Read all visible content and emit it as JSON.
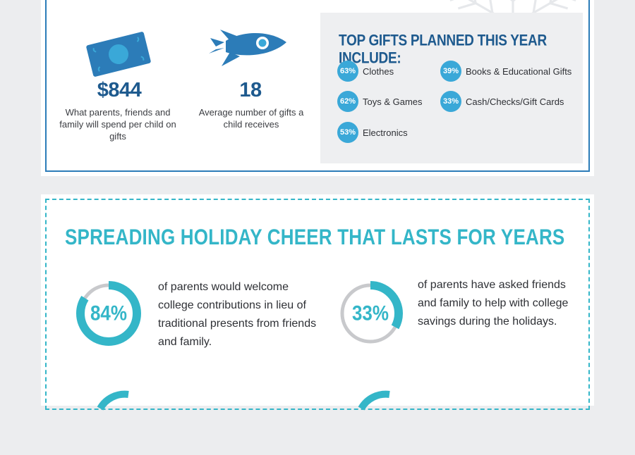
{
  "colors": {
    "navy": "#1e5a8e",
    "blue": "#2c7cb8",
    "light_blue": "#3aa8d8",
    "teal": "#34b6c8",
    "gray_ring": "#c8c9cc",
    "panel_gray": "#eeeff1"
  },
  "spending": {
    "icon": "money-bill-icon",
    "value": "$844",
    "description": "What parents, friends and family will spend per child on gifts"
  },
  "gifts_count": {
    "icon": "rocket-icon",
    "value": "18",
    "description": "Average number of gifts a child receives"
  },
  "top_gifts": {
    "title": "TOP GIFTS PLANNED THIS YEAR INCLUDE:",
    "items": [
      {
        "percent": "63%",
        "label": "Clothes"
      },
      {
        "percent": "39%",
        "label": "Books & Educational Gifts"
      },
      {
        "percent": "62%",
        "label": "Toys & Games"
      },
      {
        "percent": "33%",
        "label": "Cash/Checks/Gift Cards"
      },
      {
        "percent": "53%",
        "label": "Electronics"
      }
    ]
  },
  "cheer": {
    "title": "SPREADING HOLIDAY CHEER THAT LASTS FOR YEARS",
    "stats": [
      {
        "value": "84%",
        "fraction": 0.84,
        "text": "of parents would welcome college contributions in lieu of traditional presents from friends and family."
      },
      {
        "value": "33%",
        "fraction": 0.33,
        "text": "of parents have asked friends and family to help with college savings during the holidays."
      }
    ]
  }
}
